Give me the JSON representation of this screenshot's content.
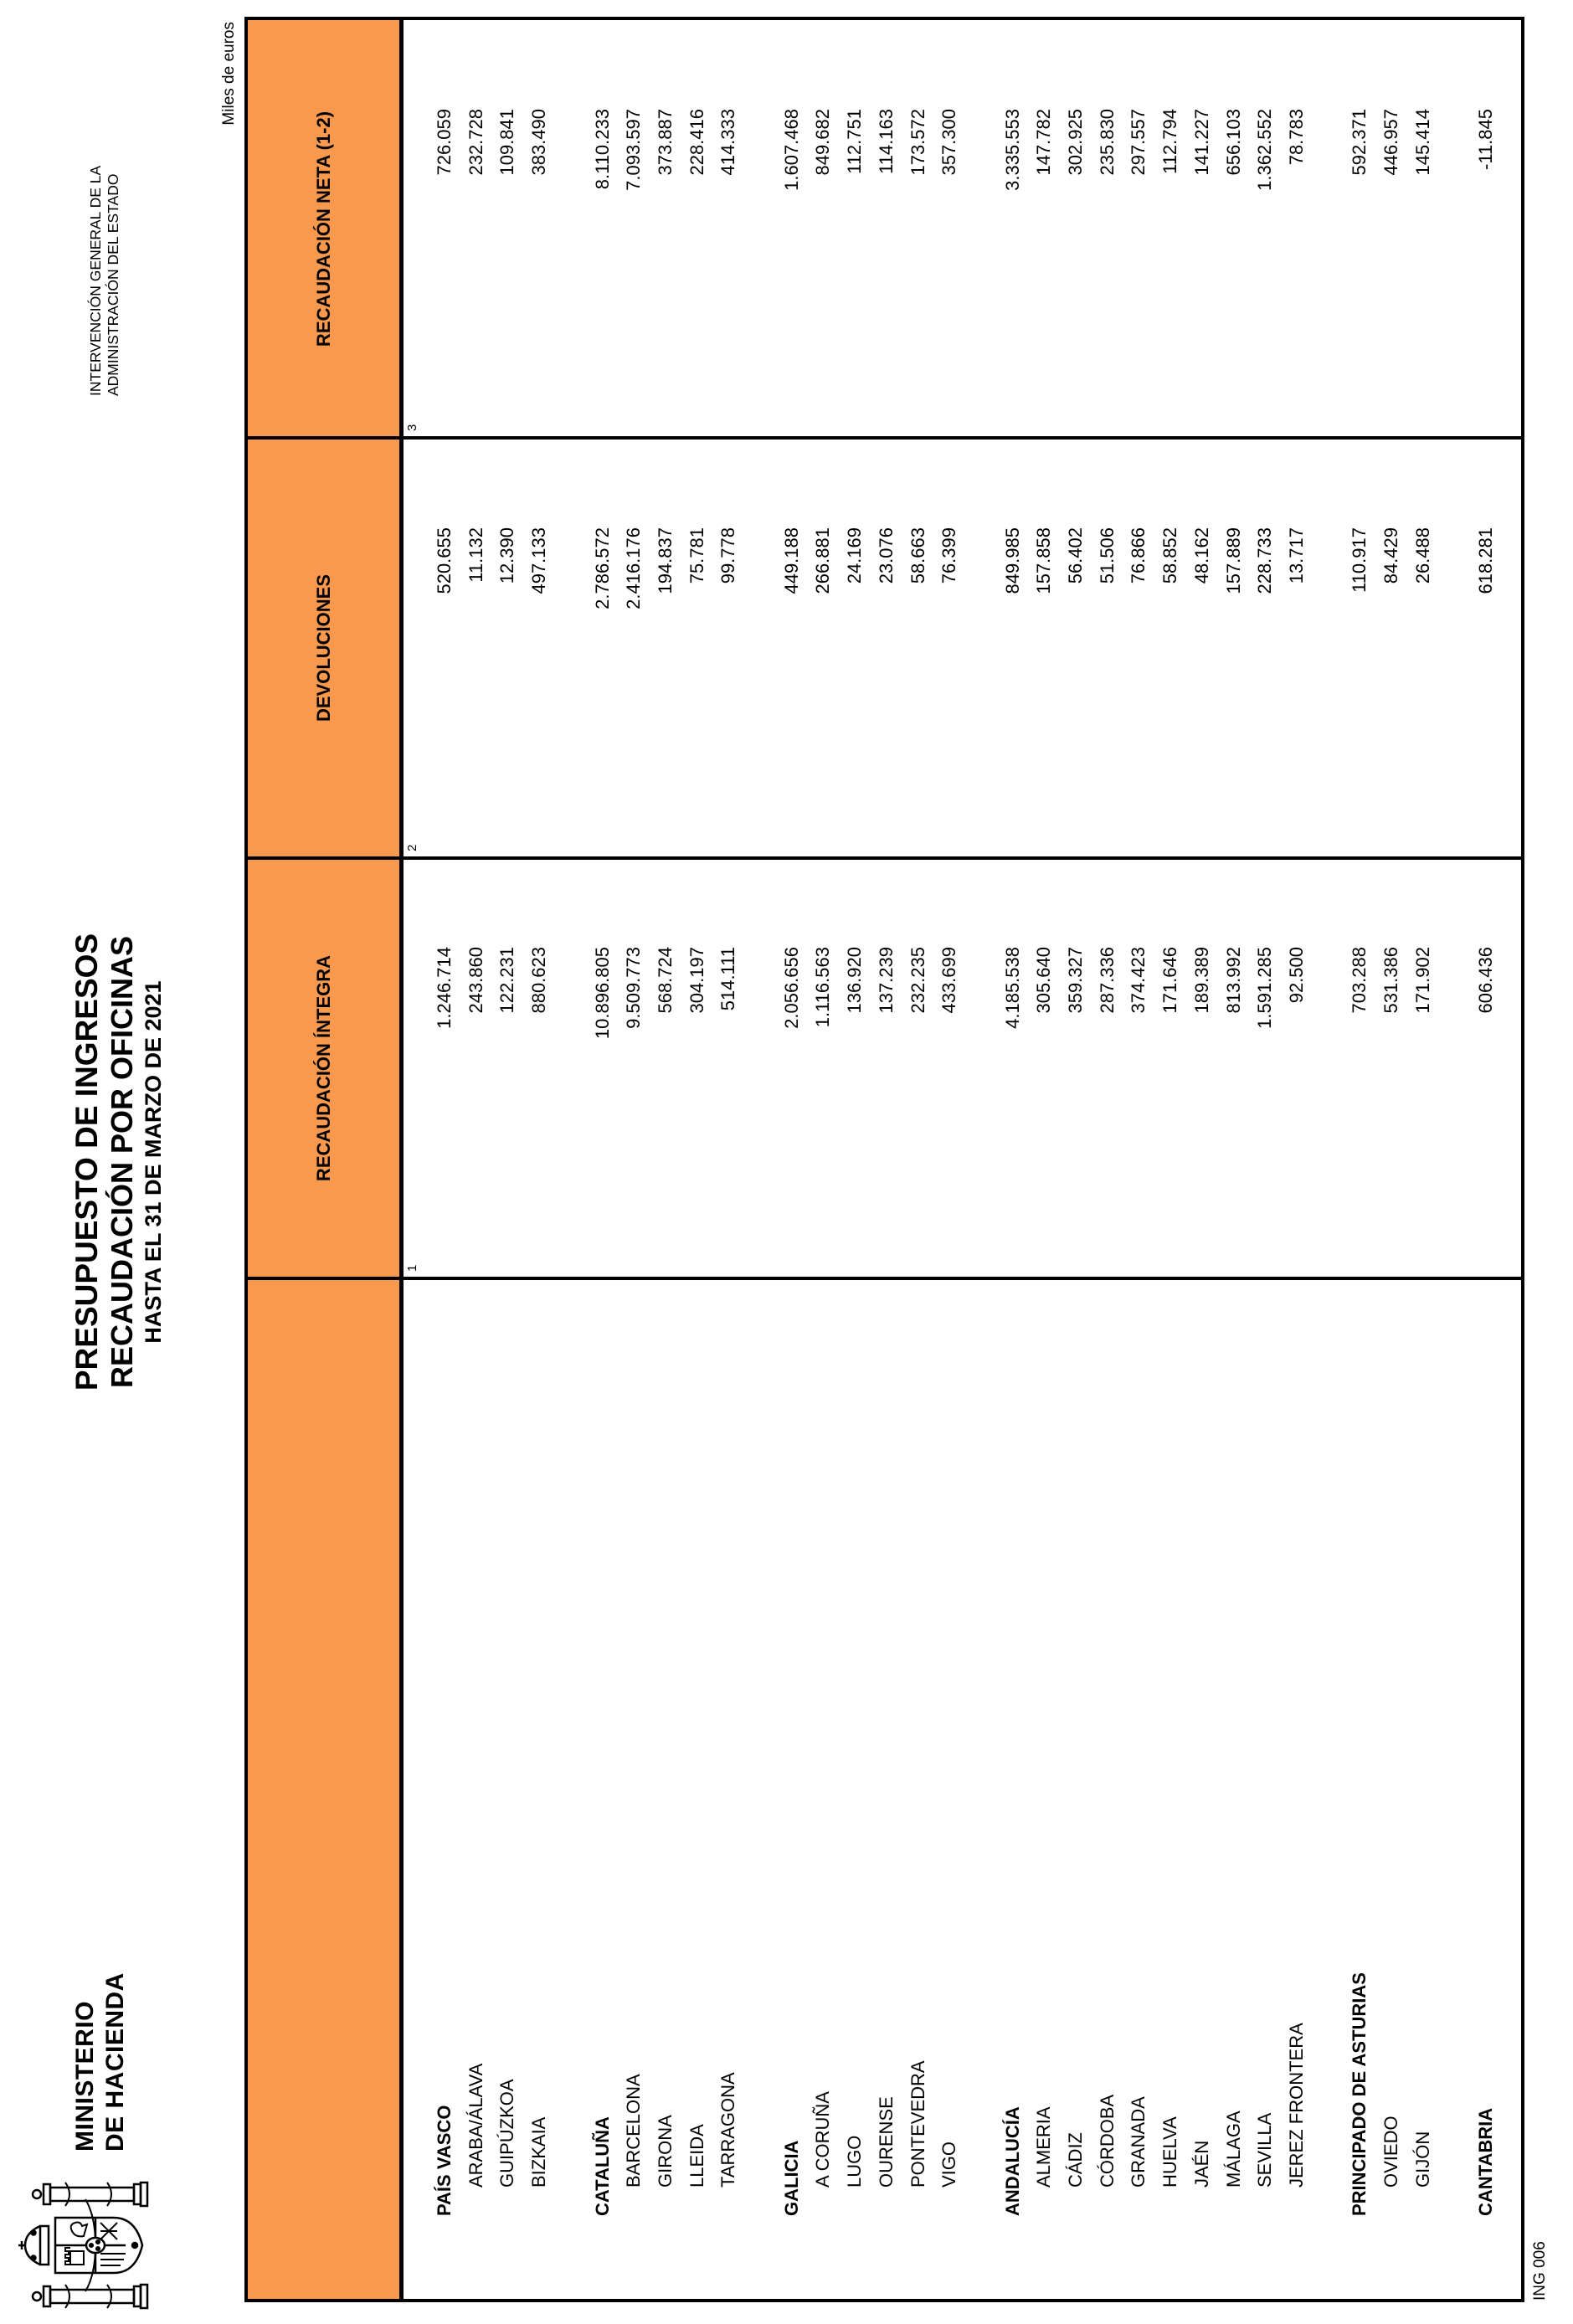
{
  "accent_color": "#F8994D",
  "border_color": "#000000",
  "ministry": {
    "line1": "MINISTERIO",
    "line2": "DE HACIENDA"
  },
  "title": {
    "line1": "PRESUPUESTO DE INGRESOS",
    "line2": "RECAUDACIÓN POR OFICINAS",
    "line3": "HASTA EL 31 DE MARZO DE 2021"
  },
  "agency": {
    "line1": "INTERVENCIÓN GENERAL DE LA",
    "line2": "ADMINISTRACIÓN DEL ESTADO"
  },
  "units_note": "Miles de euros",
  "form_code": "ING 006",
  "icons": {
    "logo": "spain-coat-of-arms-icon"
  },
  "table": {
    "columns": [
      {
        "label": "",
        "num": ""
      },
      {
        "label": "RECAUDACIÓN ÍNTEGRA",
        "num": "1"
      },
      {
        "label": "DEVOLUCIONES",
        "num": "2"
      },
      {
        "label": "RECAUDACIÓN NETA (1-2)",
        "num": "3"
      }
    ],
    "rows": [
      {
        "slot": 1,
        "level": "group",
        "name": "PAÍS VASCO",
        "integra": "1.246.714",
        "devoluciones": "520.655",
        "neta": "726.059"
      },
      {
        "slot": 2,
        "level": "office",
        "name": "ARABA/ÁLAVA",
        "integra": "243.860",
        "devoluciones": "11.132",
        "neta": "232.728"
      },
      {
        "slot": 3,
        "level": "office",
        "name": "GUIPÚZKOA",
        "integra": "122.231",
        "devoluciones": "12.390",
        "neta": "109.841"
      },
      {
        "slot": 4,
        "level": "office",
        "name": "BIZKAIA",
        "integra": "880.623",
        "devoluciones": "497.133",
        "neta": "383.490"
      },
      {
        "slot": 6,
        "level": "group",
        "name": "CATALUÑA",
        "integra": "10.896.805",
        "devoluciones": "2.786.572",
        "neta": "8.110.233"
      },
      {
        "slot": 7,
        "level": "office",
        "name": "BARCELONA",
        "integra": "9.509.773",
        "devoluciones": "2.416.176",
        "neta": "7.093.597"
      },
      {
        "slot": 8,
        "level": "office",
        "name": "GIRONA",
        "integra": "568.724",
        "devoluciones": "194.837",
        "neta": "373.887"
      },
      {
        "slot": 9,
        "level": "office",
        "name": "LLEIDA",
        "integra": "304.197",
        "devoluciones": "75.781",
        "neta": "228.416"
      },
      {
        "slot": 10,
        "level": "office",
        "name": "TARRAGONA",
        "integra": "514.111",
        "devoluciones": "99.778",
        "neta": "414.333"
      },
      {
        "slot": 12,
        "level": "group",
        "name": "GALICIA",
        "integra": "2.056.656",
        "devoluciones": "449.188",
        "neta": "1.607.468"
      },
      {
        "slot": 13,
        "level": "office",
        "name": "A CORUÑA",
        "integra": "1.116.563",
        "devoluciones": "266.881",
        "neta": "849.682"
      },
      {
        "slot": 14,
        "level": "office",
        "name": "LUGO",
        "integra": "136.920",
        "devoluciones": "24.169",
        "neta": "112.751"
      },
      {
        "slot": 15,
        "level": "office",
        "name": "OURENSE",
        "integra": "137.239",
        "devoluciones": "23.076",
        "neta": "114.163"
      },
      {
        "slot": 16,
        "level": "office",
        "name": "PONTEVEDRA",
        "integra": "232.235",
        "devoluciones": "58.663",
        "neta": "173.572"
      },
      {
        "slot": 17,
        "level": "office",
        "name": "VIGO",
        "integra": "433.699",
        "devoluciones": "76.399",
        "neta": "357.300"
      },
      {
        "slot": 19,
        "level": "group",
        "name": "ANDALUCÍA",
        "integra": "4.185.538",
        "devoluciones": "849.985",
        "neta": "3.335.553"
      },
      {
        "slot": 20,
        "level": "office",
        "name": "ALMERIA",
        "integra": "305.640",
        "devoluciones": "157.858",
        "neta": "147.782"
      },
      {
        "slot": 21,
        "level": "office",
        "name": "CÁDIZ",
        "integra": "359.327",
        "devoluciones": "56.402",
        "neta": "302.925"
      },
      {
        "slot": 22,
        "level": "office",
        "name": "CÓRDOBA",
        "integra": "287.336",
        "devoluciones": "51.506",
        "neta": "235.830"
      },
      {
        "slot": 23,
        "level": "office",
        "name": "GRANADA",
        "integra": "374.423",
        "devoluciones": "76.866",
        "neta": "297.557"
      },
      {
        "slot": 24,
        "level": "office",
        "name": "HUELVA",
        "integra": "171.646",
        "devoluciones": "58.852",
        "neta": "112.794"
      },
      {
        "slot": 25,
        "level": "office",
        "name": "JAÉN",
        "integra": "189.389",
        "devoluciones": "48.162",
        "neta": "141.227"
      },
      {
        "slot": 26,
        "level": "office",
        "name": "MÁLAGA",
        "integra": "813.992",
        "devoluciones": "157.889",
        "neta": "656.103"
      },
      {
        "slot": 27,
        "level": "office",
        "name": "SEVILLA",
        "integra": "1.591.285",
        "devoluciones": "228.733",
        "neta": "1.362.552"
      },
      {
        "slot": 28,
        "level": "office",
        "name": "JEREZ FRONTERA",
        "integra": "92.500",
        "devoluciones": "13.717",
        "neta": "78.783"
      },
      {
        "slot": 30,
        "level": "group",
        "name": "PRINCIPADO DE ASTURIAS",
        "integra": "703.288",
        "devoluciones": "110.917",
        "neta": "592.371"
      },
      {
        "slot": 31,
        "level": "office",
        "name": "OVIEDO",
        "integra": "531.386",
        "devoluciones": "84.429",
        "neta": "446.957"
      },
      {
        "slot": 32,
        "level": "office",
        "name": "GIJÓN",
        "integra": "171.902",
        "devoluciones": "26.488",
        "neta": "145.414"
      },
      {
        "slot": 34,
        "level": "group",
        "name": "CANTABRIA",
        "integra": "606.436",
        "devoluciones": "618.281",
        "neta": "-11.845"
      }
    ]
  }
}
